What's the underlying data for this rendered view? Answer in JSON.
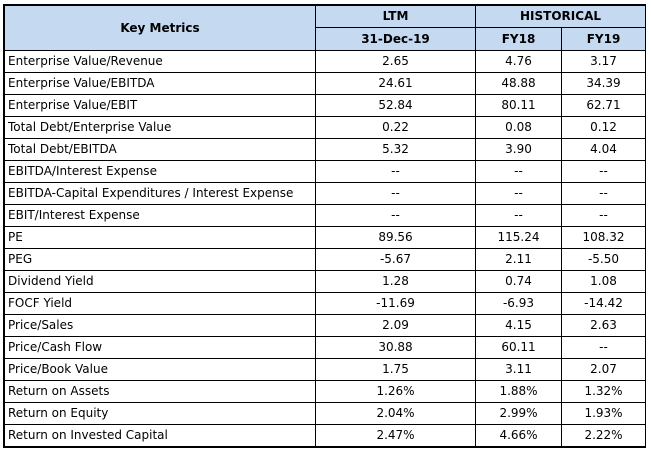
{
  "table": {
    "header": {
      "metrics_label": "Key Metrics",
      "ltm_label": "LTM",
      "historical_label": "HISTORICAL",
      "ltm_date": "31-Dec-19",
      "fy18": "FY18",
      "fy19": "FY19"
    },
    "rows": [
      {
        "metric": "Enterprise Value/Revenue",
        "ltm": "2.65",
        "fy18": "4.76",
        "fy19": "3.17"
      },
      {
        "metric": "Enterprise Value/EBITDA",
        "ltm": "24.61",
        "fy18": "48.88",
        "fy19": "34.39"
      },
      {
        "metric": "Enterprise Value/EBIT",
        "ltm": "52.84",
        "fy18": "80.11",
        "fy19": "62.71"
      },
      {
        "metric": "Total Debt/Enterprise Value",
        "ltm": "0.22",
        "fy18": "0.08",
        "fy19": "0.12"
      },
      {
        "metric": "Total Debt/EBITDA",
        "ltm": "5.32",
        "fy18": "3.90",
        "fy19": "4.04"
      },
      {
        "metric": "EBITDA/Interest Expense",
        "ltm": "--",
        "fy18": "--",
        "fy19": "--"
      },
      {
        "metric": "EBITDA-Capital Expenditures / Interest Expense",
        "ltm": "--",
        "fy18": "--",
        "fy19": "--"
      },
      {
        "metric": "EBIT/Interest Expense",
        "ltm": "--",
        "fy18": "--",
        "fy19": "--"
      },
      {
        "metric": "PE",
        "ltm": "89.56",
        "fy18": "115.24",
        "fy19": "108.32"
      },
      {
        "metric": "PEG",
        "ltm": "-5.67",
        "fy18": "2.11",
        "fy19": "-5.50"
      },
      {
        "metric": "Dividend Yield",
        "ltm": "1.28",
        "fy18": "0.74",
        "fy19": "1.08"
      },
      {
        "metric": "FOCF Yield",
        "ltm": "-11.69",
        "fy18": "-6.93",
        "fy19": "-14.42"
      },
      {
        "metric": "Price/Sales",
        "ltm": "2.09",
        "fy18": "4.15",
        "fy19": "2.63"
      },
      {
        "metric": "Price/Cash Flow",
        "ltm": "30.88",
        "fy18": "60.11",
        "fy19": "--"
      },
      {
        "metric": "Price/Book Value",
        "ltm": "1.75",
        "fy18": "3.11",
        "fy19": "2.07"
      },
      {
        "metric": "Return on Assets",
        "ltm": "1.26%",
        "fy18": "1.88%",
        "fy19": "1.32%"
      },
      {
        "metric": "Return on Equity",
        "ltm": "2.04%",
        "fy18": "2.99%",
        "fy19": "1.93%"
      },
      {
        "metric": "Return on Invested Capital",
        "ltm": "2.47%",
        "fy18": "4.66%",
        "fy19": "2.22%"
      }
    ]
  },
  "colors": {
    "header_bg": "#c5d9f1",
    "border": "#000000"
  }
}
